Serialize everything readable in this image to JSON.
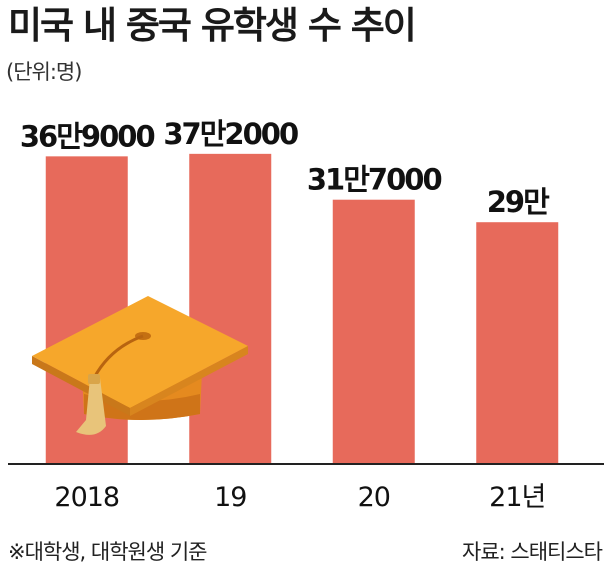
{
  "header": {
    "title": "미국 내 중국 유학생 수 추이",
    "unit": "(단위:명)"
  },
  "footer": {
    "note": "※대학생, 대학원생 기준",
    "source": "자료: 스태티스타"
  },
  "colors": {
    "bar": "#e76a5b",
    "axis": "#222222",
    "cap_top": "#f6a72b",
    "cap_base": "#e58a1f",
    "tassel": "#e8c47a"
  },
  "illustration": {
    "icon": "graduation-cap-icon"
  },
  "chart_data": {
    "type": "bar",
    "categories": [
      "2018",
      "19",
      "20",
      "21년"
    ],
    "values": [
      369000,
      372000,
      317000,
      290000
    ],
    "data_labels": [
      "36만9000",
      "37만2000",
      "31만7000",
      "29만"
    ],
    "title": "미국 내 중국 유학생 수 추이",
    "unit": "(단위:명)",
    "ylim": [
      0,
      397000
    ],
    "grid": false,
    "legend": "none"
  }
}
